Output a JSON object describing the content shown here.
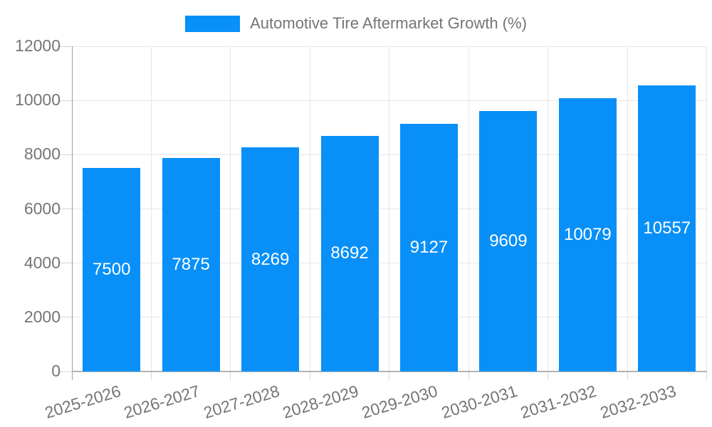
{
  "colors": {
    "bar": "#0890f8",
    "axis_text": "#757575",
    "grid": "#e6e6e6",
    "axis_line": "#9e9e9e",
    "baseline": "#b3b3b3",
    "tick_dash": "#d6d6d6",
    "bar_label": "#ffffff",
    "background": "#ffffff"
  },
  "legend": {
    "label": "Automotive Tire Aftermarket Growth (%)"
  },
  "chart_data": {
    "type": "bar",
    "title": "Automotive Tire Aftermarket Growth (%)",
    "categories": [
      "2025-2026",
      "2026-2027",
      "2027-2028",
      "2028-2029",
      "2029-2030",
      "2030-2031",
      "2031-2032",
      "2032-2033"
    ],
    "values": [
      7500,
      7875,
      8269,
      8692,
      9127,
      9609,
      10079,
      10557
    ],
    "bar_labels": [
      7500,
      7875,
      8269,
      8692,
      9127,
      9609,
      10079,
      10557
    ],
    "xlabel": "",
    "ylabel": "",
    "ylim": [
      0,
      12000
    ],
    "yticks": [
      0,
      2000,
      4000,
      6000,
      8000,
      10000,
      12000
    ],
    "grid": true,
    "legend_position": "top"
  }
}
